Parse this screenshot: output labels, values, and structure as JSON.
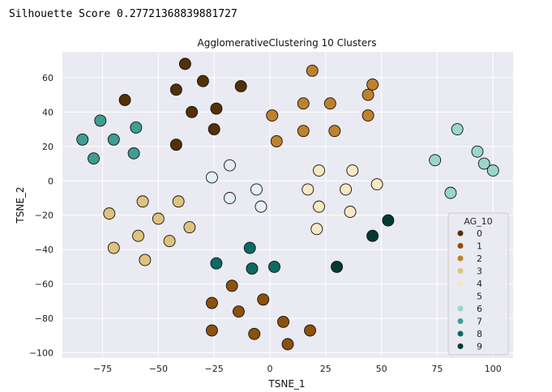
{
  "header": {
    "score_text": "Silhouette Score 0.27721368839881727"
  },
  "chart_data": {
    "type": "scatter",
    "title": "AgglomerativeClustering 10 Clusters",
    "xlabel": "TSNE_1",
    "ylabel": "TSNE_2",
    "xlim": [
      -93,
      109
    ],
    "ylim": [
      -103,
      75
    ],
    "xticks": [
      -75,
      -50,
      -25,
      0,
      25,
      50,
      75,
      100
    ],
    "yticks": [
      -100,
      -80,
      -60,
      -40,
      -20,
      0,
      20,
      40,
      60
    ],
    "xtick_labels": [
      "−75",
      "−50",
      "−25",
      "0",
      "25",
      "50",
      "75",
      "100"
    ],
    "ytick_labels": [
      "−100",
      "−80",
      "−60",
      "−40",
      "−20",
      "0",
      "20",
      "40",
      "60"
    ],
    "grid": true,
    "legend": {
      "title": "AG_10",
      "placement": "lower right"
    },
    "colors": [
      "#543005",
      "#8c510a",
      "#bf812d",
      "#dfc27d",
      "#f6e8c3",
      "#e4f0ef",
      "#99d7c9",
      "#3f9d92",
      "#0b6b63",
      "#003c30"
    ],
    "series": [
      {
        "name": "0",
        "points": [
          [
            -38,
            68
          ],
          [
            -30,
            58
          ],
          [
            -13,
            55
          ],
          [
            -42,
            53
          ],
          [
            -65,
            47
          ],
          [
            -24,
            42
          ],
          [
            -35,
            40
          ],
          [
            -25,
            30
          ],
          [
            -42,
            21
          ]
        ]
      },
      {
        "name": "1",
        "points": [
          [
            -17,
            -61
          ],
          [
            -26,
            -71
          ],
          [
            -3,
            -69
          ],
          [
            -14,
            -76
          ],
          [
            6,
            -82
          ],
          [
            -26,
            -87
          ],
          [
            -7,
            -89
          ],
          [
            18,
            -87
          ],
          [
            8,
            -95
          ]
        ]
      },
      {
        "name": "2",
        "points": [
          [
            19,
            64
          ],
          [
            46,
            56
          ],
          [
            44,
            50
          ],
          [
            15,
            45
          ],
          [
            27,
            45
          ],
          [
            44,
            38
          ],
          [
            1,
            38
          ],
          [
            15,
            29
          ],
          [
            29,
            29
          ],
          [
            3,
            23
          ]
        ]
      },
      {
        "name": "3",
        "points": [
          [
            -57,
            -12
          ],
          [
            -41,
            -12
          ],
          [
            -72,
            -19
          ],
          [
            -50,
            -22
          ],
          [
            -36,
            -27
          ],
          [
            -59,
            -32
          ],
          [
            -45,
            -35
          ],
          [
            -70,
            -39
          ],
          [
            -56,
            -46
          ]
        ]
      },
      {
        "name": "4",
        "points": [
          [
            37,
            6
          ],
          [
            22,
            6
          ],
          [
            48,
            -2
          ],
          [
            17,
            -5
          ],
          [
            34,
            -5
          ],
          [
            22,
            -15
          ],
          [
            36,
            -18
          ],
          [
            21,
            -28
          ]
        ]
      },
      {
        "name": "5",
        "points": [
          [
            -18,
            9
          ],
          [
            -26,
            2
          ],
          [
            -6,
            -5
          ],
          [
            -18,
            -10
          ],
          [
            -4,
            -15
          ]
        ]
      },
      {
        "name": "6",
        "points": [
          [
            84,
            30
          ],
          [
            93,
            17
          ],
          [
            96,
            10
          ],
          [
            100,
            6
          ],
          [
            74,
            12
          ],
          [
            81,
            -7
          ]
        ]
      },
      {
        "name": "7",
        "points": [
          [
            -76,
            35
          ],
          [
            -60,
            31
          ],
          [
            -84,
            24
          ],
          [
            -70,
            24
          ],
          [
            -61,
            16
          ],
          [
            -79,
            13
          ]
        ]
      },
      {
        "name": "8",
        "points": [
          [
            -9,
            -39
          ],
          [
            -24,
            -48
          ],
          [
            -8,
            -51
          ],
          [
            2,
            -50
          ]
        ]
      },
      {
        "name": "9",
        "points": [
          [
            53,
            -23
          ],
          [
            46,
            -32
          ],
          [
            30,
            -50
          ]
        ]
      }
    ]
  }
}
